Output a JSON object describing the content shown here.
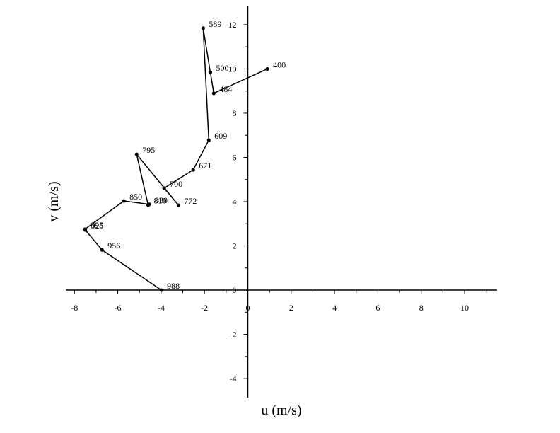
{
  "chart_data": {
    "type": "line",
    "xlabel": "u (m/s)",
    "ylabel": "v (m/s)",
    "x": [
      0.9,
      -1.57,
      -1.73,
      -2.06,
      -1.8,
      -2.52,
      -3.86,
      -3.2,
      -5.13,
      -4.6,
      -4.55,
      -5.72,
      -7.52,
      -7.5,
      -6.73,
      -3.99
    ],
    "series": [
      {
        "name": null,
        "color": "#000000",
        "values": [
          10.0,
          8.9,
          9.85,
          11.84,
          6.78,
          5.44,
          4.61,
          3.84,
          6.14,
          3.85,
          3.88,
          4.03,
          2.75,
          2.72,
          1.82,
          0
        ],
        "labels": [
          "400",
          "484",
          "500",
          "589",
          "609",
          "671",
          "700",
          "772",
          "795",
          "810",
          "830",
          "850",
          "895",
          "925",
          "956",
          "988"
        ]
      }
    ],
    "xlim": [
      -8.4,
      11.5
    ],
    "ylim": [
      -4.86,
      12.86
    ],
    "xticks": [
      -8,
      -6,
      -4,
      -2,
      0,
      2,
      4,
      6,
      8,
      10
    ],
    "yticks": [
      -4,
      -2,
      0,
      2,
      4,
      6,
      8,
      10,
      12
    ],
    "xminorticks": [
      -7,
      -5,
      -3,
      -1,
      1,
      3,
      5,
      7,
      9,
      11
    ],
    "yminorticks": [
      -3,
      -1,
      1,
      3,
      5,
      7,
      9,
      11
    ]
  }
}
